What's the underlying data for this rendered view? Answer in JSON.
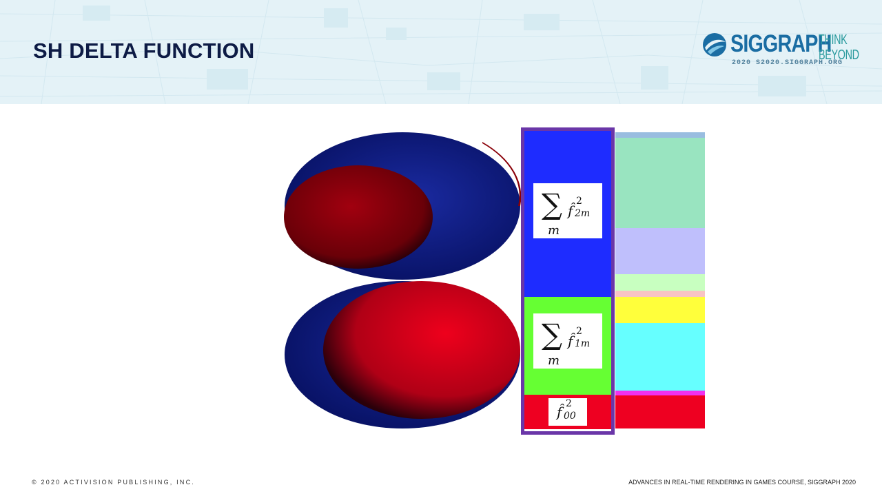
{
  "slide": {
    "title": "SH DELTA FUNCTION"
  },
  "logo": {
    "brand": "SIGGRAPH",
    "url": "2020  S2020.SIGGRAPH.ORG",
    "tagline_1": "THINK",
    "tagline_2": "BEYOND"
  },
  "formulas": {
    "band2": {
      "sum_symbol": "∑",
      "index": "m",
      "f": "f̂",
      "sup": "2",
      "sub": "2m"
    },
    "band1": {
      "sum_symbol": "∑",
      "index": "m",
      "f": "f̂",
      "sup": "2",
      "sub": "1m"
    },
    "band0": {
      "f": "f̂",
      "sup": "2",
      "sub": "00"
    }
  },
  "colors": {
    "header_bg": "#e4f2f7",
    "title": "#0d1b45",
    "lobe_positive": "#e8001c",
    "lobe_negative": "#0b1a8a",
    "band2": "#1e2cff",
    "band1": "#66ff33",
    "band0": "#ee0021",
    "highlight_frame": "#6a36a8",
    "strip": [
      "#99bde0",
      "#99e4c0",
      "#bfbffc",
      "#c8ffc0",
      "#f8c4c4",
      "#ffff3b",
      "#66ffff",
      "#f030f0",
      "#ee0021"
    ]
  },
  "footer": {
    "copyright": "© 2020 ACTIVISION PUBLISHING, INC.",
    "course": "ADVANCES IN REAL-TIME RENDERING IN GAMES COURSE, SIGGRAPH 2020"
  }
}
